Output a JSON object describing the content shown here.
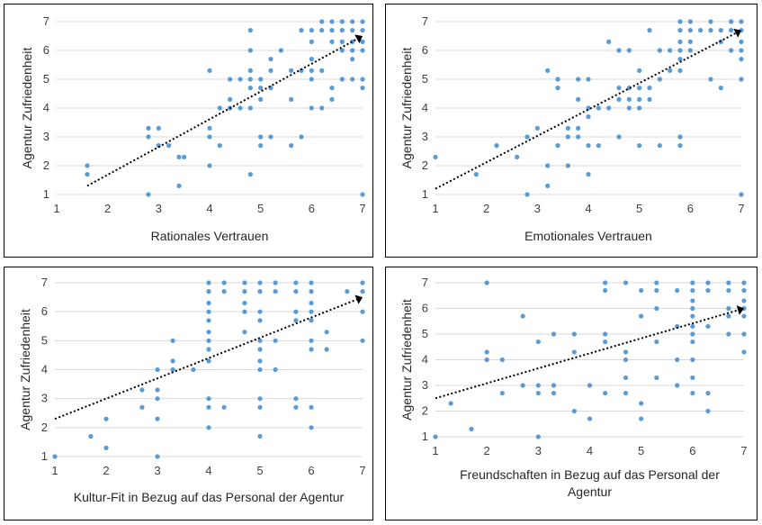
{
  "chart_data": [
    {
      "type": "scatter",
      "xlabel": "Rationales Vertrauen",
      "ylabel": "Agentur Zufriedenheit",
      "xlim": [
        1,
        7
      ],
      "ylim": [
        1,
        7
      ],
      "xticks": [
        "1",
        "2",
        "3",
        "4",
        "5",
        "6",
        "7"
      ],
      "yticks": [
        "1",
        "2",
        "3",
        "4",
        "5",
        "6",
        "7"
      ],
      "marker_color": "#5b9bd5",
      "trendline": {
        "style": "dotted-arrow",
        "x1": 1.6,
        "y1": 1.3,
        "x2": 7.0,
        "y2": 6.5
      },
      "points": [
        [
          1.6,
          2.0
        ],
        [
          1.6,
          1.7
        ],
        [
          2.8,
          1.0
        ],
        [
          2.8,
          3.0
        ],
        [
          2.8,
          3.3
        ],
        [
          3.0,
          3.3
        ],
        [
          3.0,
          2.7
        ],
        [
          3.2,
          2.7
        ],
        [
          3.4,
          2.3
        ],
        [
          3.5,
          2.3
        ],
        [
          3.4,
          1.3
        ],
        [
          4.0,
          5.3
        ],
        [
          4.0,
          3.3
        ],
        [
          4.0,
          3.0
        ],
        [
          4.0,
          2.0
        ],
        [
          4.2,
          4.0
        ],
        [
          4.2,
          2.7
        ],
        [
          4.4,
          5.0
        ],
        [
          4.4,
          4.3
        ],
        [
          4.4,
          4.0
        ],
        [
          4.6,
          5.0
        ],
        [
          4.6,
          4.0
        ],
        [
          4.8,
          6.7
        ],
        [
          4.8,
          6.0
        ],
        [
          4.8,
          5.3
        ],
        [
          4.8,
          5.0
        ],
        [
          4.8,
          4.7
        ],
        [
          4.8,
          4.0
        ],
        [
          4.8,
          1.7
        ],
        [
          5.0,
          5.0
        ],
        [
          5.0,
          4.7
        ],
        [
          5.0,
          4.3
        ],
        [
          5.0,
          3.0
        ],
        [
          5.0,
          2.7
        ],
        [
          5.2,
          5.7
        ],
        [
          5.2,
          5.3
        ],
        [
          5.2,
          4.7
        ],
        [
          5.2,
          3.0
        ],
        [
          5.4,
          6.0
        ],
        [
          5.6,
          5.3
        ],
        [
          5.6,
          4.3
        ],
        [
          5.6,
          2.7
        ],
        [
          5.8,
          6.7
        ],
        [
          5.8,
          5.3
        ],
        [
          5.8,
          3.0
        ],
        [
          6.0,
          6.7
        ],
        [
          6.0,
          6.3
        ],
        [
          6.0,
          5.7
        ],
        [
          6.0,
          5.3
        ],
        [
          6.0,
          5.0
        ],
        [
          6.0,
          4.0
        ],
        [
          6.2,
          7.0
        ],
        [
          6.2,
          6.7
        ],
        [
          6.2,
          5.3
        ],
        [
          6.2,
          4.0
        ],
        [
          6.4,
          7.0
        ],
        [
          6.4,
          6.7
        ],
        [
          6.4,
          6.3
        ],
        [
          6.4,
          4.7
        ],
        [
          6.4,
          4.3
        ],
        [
          6.6,
          7.0
        ],
        [
          6.6,
          6.7
        ],
        [
          6.6,
          6.3
        ],
        [
          6.6,
          6.0
        ],
        [
          6.6,
          5.0
        ],
        [
          6.8,
          7.0
        ],
        [
          6.8,
          6.7
        ],
        [
          6.8,
          6.3
        ],
        [
          6.8,
          6.0
        ],
        [
          6.8,
          5.7
        ],
        [
          6.8,
          5.0
        ],
        [
          7.0,
          7.0
        ],
        [
          7.0,
          6.7
        ],
        [
          7.0,
          6.3
        ],
        [
          7.0,
          6.0
        ],
        [
          7.0,
          5.0
        ],
        [
          7.0,
          4.7
        ],
        [
          7.0,
          1.0
        ]
      ]
    },
    {
      "type": "scatter",
      "xlabel": "Emotionales Vertrauen",
      "ylabel": "Agentur Zufriedenheit",
      "xlim": [
        1,
        7
      ],
      "ylim": [
        1,
        7
      ],
      "xticks": [
        "1",
        "2",
        "3",
        "4",
        "5",
        "6",
        "7"
      ],
      "yticks": [
        "1",
        "2",
        "3",
        "4",
        "5",
        "6",
        "7"
      ],
      "marker_color": "#5b9bd5",
      "trendline": {
        "style": "dotted-arrow",
        "x1": 1.0,
        "y1": 1.2,
        "x2": 7.0,
        "y2": 6.7
      },
      "points": [
        [
          1.0,
          2.3
        ],
        [
          1.8,
          1.7
        ],
        [
          2.2,
          2.7
        ],
        [
          2.6,
          2.3
        ],
        [
          2.8,
          3.0
        ],
        [
          2.8,
          1.0
        ],
        [
          3.0,
          3.3
        ],
        [
          3.2,
          5.3
        ],
        [
          3.2,
          2.0
        ],
        [
          3.2,
          1.3
        ],
        [
          3.4,
          5.0
        ],
        [
          3.4,
          4.7
        ],
        [
          3.4,
          2.7
        ],
        [
          3.6,
          3.0
        ],
        [
          3.6,
          3.3
        ],
        [
          3.6,
          2.0
        ],
        [
          3.8,
          5.0
        ],
        [
          3.8,
          4.3
        ],
        [
          3.8,
          3.3
        ],
        [
          3.8,
          3.0
        ],
        [
          4.0,
          5.0
        ],
        [
          4.0,
          4.0
        ],
        [
          4.0,
          3.7
        ],
        [
          4.0,
          2.7
        ],
        [
          4.0,
          1.7
        ],
        [
          4.2,
          4.0
        ],
        [
          4.2,
          2.7
        ],
        [
          4.4,
          6.3
        ],
        [
          4.4,
          4.0
        ],
        [
          4.6,
          6.0
        ],
        [
          4.6,
          4.7
        ],
        [
          4.6,
          4.3
        ],
        [
          4.6,
          3.0
        ],
        [
          4.8,
          6.0
        ],
        [
          4.8,
          4.7
        ],
        [
          4.8,
          4.3
        ],
        [
          4.8,
          4.0
        ],
        [
          5.0,
          5.3
        ],
        [
          5.0,
          4.7
        ],
        [
          5.0,
          4.3
        ],
        [
          5.0,
          4.0
        ],
        [
          5.0,
          2.7
        ],
        [
          5.2,
          6.7
        ],
        [
          5.2,
          4.7
        ],
        [
          5.2,
          4.3
        ],
        [
          5.4,
          6.0
        ],
        [
          5.4,
          5.0
        ],
        [
          5.4,
          2.7
        ],
        [
          5.6,
          6.0
        ],
        [
          5.6,
          5.3
        ],
        [
          5.8,
          7.0
        ],
        [
          5.8,
          6.7
        ],
        [
          5.8,
          6.3
        ],
        [
          5.8,
          6.0
        ],
        [
          5.8,
          5.7
        ],
        [
          5.8,
          5.3
        ],
        [
          5.8,
          3.0
        ],
        [
          5.8,
          2.7
        ],
        [
          6.0,
          7.0
        ],
        [
          6.0,
          6.7
        ],
        [
          6.0,
          6.3
        ],
        [
          6.0,
          6.0
        ],
        [
          6.2,
          6.7
        ],
        [
          6.4,
          7.0
        ],
        [
          6.4,
          6.7
        ],
        [
          6.4,
          5.0
        ],
        [
          6.6,
          6.7
        ],
        [
          6.6,
          6.3
        ],
        [
          6.6,
          4.7
        ],
        [
          6.8,
          7.0
        ],
        [
          6.8,
          6.7
        ],
        [
          6.8,
          6.0
        ],
        [
          7.0,
          7.0
        ],
        [
          7.0,
          6.7
        ],
        [
          7.0,
          6.3
        ],
        [
          7.0,
          6.0
        ],
        [
          7.0,
          5.7
        ],
        [
          7.0,
          5.0
        ],
        [
          7.0,
          1.0
        ]
      ]
    },
    {
      "type": "scatter",
      "xlabel": "Kultur-Fit in Bezug auf das Personal der Agentur",
      "ylabel": "Agentur Zufriedenheit",
      "xlim": [
        1,
        7
      ],
      "ylim": [
        1,
        7
      ],
      "xticks": [
        "1",
        "2",
        "3",
        "4",
        "5",
        "6",
        "7"
      ],
      "yticks": [
        "1",
        "2",
        "3",
        "4",
        "5",
        "6",
        "7"
      ],
      "marker_color": "#5b9bd5",
      "trendline": {
        "style": "dotted-arrow",
        "x1": 1.0,
        "y1": 2.3,
        "x2": 7.0,
        "y2": 6.5
      },
      "points": [
        [
          1.0,
          1.0
        ],
        [
          1.7,
          1.7
        ],
        [
          2.0,
          2.3
        ],
        [
          2.0,
          1.3
        ],
        [
          2.7,
          3.3
        ],
        [
          2.7,
          2.7
        ],
        [
          3.0,
          4.0
        ],
        [
          3.0,
          3.3
        ],
        [
          3.0,
          3.0
        ],
        [
          3.0,
          2.3
        ],
        [
          3.0,
          1.0
        ],
        [
          3.3,
          5.0
        ],
        [
          3.3,
          4.3
        ],
        [
          3.3,
          4.0
        ],
        [
          3.7,
          4.0
        ],
        [
          4.0,
          7.0
        ],
        [
          4.0,
          6.7
        ],
        [
          4.0,
          6.3
        ],
        [
          4.0,
          6.0
        ],
        [
          4.0,
          5.7
        ],
        [
          4.0,
          5.3
        ],
        [
          4.0,
          5.0
        ],
        [
          4.0,
          4.7
        ],
        [
          4.0,
          4.3
        ],
        [
          4.0,
          3.0
        ],
        [
          4.0,
          2.7
        ],
        [
          4.0,
          2.0
        ],
        [
          4.3,
          7.0
        ],
        [
          4.3,
          6.7
        ],
        [
          4.3,
          2.7
        ],
        [
          4.7,
          7.0
        ],
        [
          4.7,
          6.7
        ],
        [
          4.7,
          6.3
        ],
        [
          4.7,
          6.0
        ],
        [
          4.7,
          5.3
        ],
        [
          5.0,
          7.0
        ],
        [
          5.0,
          6.7
        ],
        [
          5.0,
          6.0
        ],
        [
          5.0,
          5.7
        ],
        [
          5.0,
          5.0
        ],
        [
          5.0,
          4.7
        ],
        [
          5.0,
          4.3
        ],
        [
          5.0,
          4.0
        ],
        [
          5.0,
          3.0
        ],
        [
          5.0,
          2.7
        ],
        [
          5.0,
          1.7
        ],
        [
          5.3,
          7.0
        ],
        [
          5.3,
          6.7
        ],
        [
          5.3,
          5.0
        ],
        [
          5.3,
          4.0
        ],
        [
          5.7,
          7.0
        ],
        [
          5.7,
          6.7
        ],
        [
          5.7,
          6.0
        ],
        [
          5.7,
          5.7
        ],
        [
          5.7,
          3.0
        ],
        [
          5.7,
          2.7
        ],
        [
          6.0,
          7.0
        ],
        [
          6.0,
          6.7
        ],
        [
          6.0,
          6.3
        ],
        [
          6.0,
          6.0
        ],
        [
          6.0,
          5.7
        ],
        [
          6.0,
          5.0
        ],
        [
          6.0,
          4.7
        ],
        [
          6.0,
          2.7
        ],
        [
          6.0,
          2.0
        ],
        [
          6.3,
          5.3
        ],
        [
          6.3,
          4.7
        ],
        [
          6.7,
          6.7
        ],
        [
          7.0,
          7.0
        ],
        [
          7.0,
          6.7
        ],
        [
          7.0,
          6.0
        ],
        [
          7.0,
          5.0
        ]
      ]
    },
    {
      "type": "scatter",
      "xlabel": "Freundschaften in Bezug auf das Personal der Agentur",
      "ylabel": "Agentur Zufriedenheit",
      "xlim": [
        1,
        7
      ],
      "ylim": [
        1,
        7
      ],
      "xticks": [
        "1",
        "2",
        "3",
        "4",
        "5",
        "6",
        "7"
      ],
      "yticks": [
        "1",
        "2",
        "3",
        "4",
        "5",
        "6",
        "7"
      ],
      "marker_color": "#5b9bd5",
      "trendline": {
        "style": "dotted-arrow",
        "x1": 1.0,
        "y1": 2.5,
        "x2": 7.0,
        "y2": 6.0
      },
      "points": [
        [
          1.0,
          1.0
        ],
        [
          1.3,
          2.3
        ],
        [
          1.7,
          1.3
        ],
        [
          2.0,
          7.0
        ],
        [
          2.0,
          4.3
        ],
        [
          2.0,
          4.0
        ],
        [
          2.3,
          4.0
        ],
        [
          2.3,
          2.7
        ],
        [
          2.7,
          5.7
        ],
        [
          2.7,
          3.0
        ],
        [
          3.0,
          4.7
        ],
        [
          3.0,
          3.0
        ],
        [
          3.0,
          2.7
        ],
        [
          3.0,
          1.0
        ],
        [
          3.3,
          5.0
        ],
        [
          3.3,
          3.0
        ],
        [
          3.3,
          2.7
        ],
        [
          3.7,
          5.0
        ],
        [
          3.7,
          4.3
        ],
        [
          3.7,
          2.0
        ],
        [
          4.0,
          3.0
        ],
        [
          4.0,
          1.7
        ],
        [
          4.3,
          7.0
        ],
        [
          4.3,
          6.7
        ],
        [
          4.3,
          5.0
        ],
        [
          4.3,
          4.7
        ],
        [
          4.3,
          2.7
        ],
        [
          4.7,
          7.0
        ],
        [
          4.7,
          4.3
        ],
        [
          4.7,
          4.0
        ],
        [
          4.7,
          3.3
        ],
        [
          4.7,
          2.7
        ],
        [
          5.0,
          6.7
        ],
        [
          5.0,
          5.7
        ],
        [
          5.0,
          2.3
        ],
        [
          5.0,
          1.7
        ],
        [
          5.3,
          7.0
        ],
        [
          5.3,
          6.7
        ],
        [
          5.3,
          6.0
        ],
        [
          5.3,
          4.7
        ],
        [
          5.3,
          3.3
        ],
        [
          5.7,
          6.7
        ],
        [
          5.7,
          5.3
        ],
        [
          5.7,
          4.0
        ],
        [
          5.7,
          3.0
        ],
        [
          6.0,
          7.0
        ],
        [
          6.0,
          6.7
        ],
        [
          6.0,
          6.3
        ],
        [
          6.0,
          6.0
        ],
        [
          6.0,
          5.7
        ],
        [
          6.0,
          5.3
        ],
        [
          6.0,
          5.0
        ],
        [
          6.0,
          4.7
        ],
        [
          6.0,
          4.0
        ],
        [
          6.0,
          3.3
        ],
        [
          6.0,
          2.7
        ],
        [
          6.3,
          7.0
        ],
        [
          6.3,
          6.7
        ],
        [
          6.3,
          5.3
        ],
        [
          6.3,
          2.7
        ],
        [
          6.3,
          2.0
        ],
        [
          6.7,
          7.0
        ],
        [
          6.7,
          6.7
        ],
        [
          6.7,
          6.0
        ],
        [
          6.7,
          5.7
        ],
        [
          6.7,
          5.0
        ],
        [
          7.0,
          7.0
        ],
        [
          7.0,
          6.7
        ],
        [
          7.0,
          6.3
        ],
        [
          7.0,
          6.0
        ],
        [
          7.0,
          5.7
        ],
        [
          7.0,
          5.0
        ],
        [
          7.0,
          4.3
        ]
      ]
    }
  ]
}
